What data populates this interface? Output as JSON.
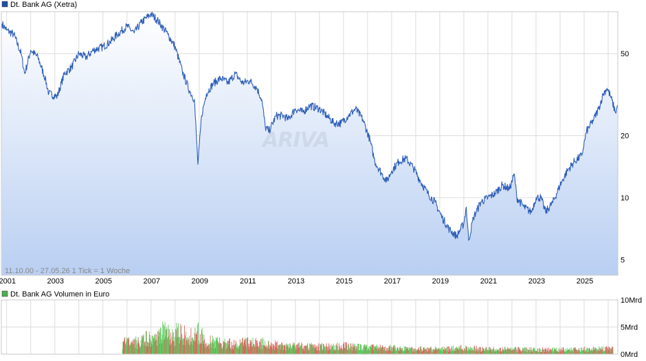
{
  "price_chart": {
    "legend_label": "Dt. Bank AG (Xetra)",
    "legend_color": "#1f4fa8",
    "line_color": "#2c5db8",
    "fill_top": "#ffffff",
    "fill_bottom": "#b9cff2",
    "info_text": "11.10.00 - 27.05.26   1 Tick = 1 Woche",
    "watermark": "ARIVA",
    "y_ticks": [
      {
        "label": "50",
        "value": 50
      },
      {
        "label": "20",
        "value": 20
      },
      {
        "label": "10",
        "value": 10
      },
      {
        "label": "5",
        "value": 5
      }
    ],
    "x_ticks": [
      {
        "label": "2001",
        "value": 2001
      },
      {
        "label": "2003",
        "value": 2003
      },
      {
        "label": "2005",
        "value": 2005
      },
      {
        "label": "2007",
        "value": 2007
      },
      {
        "label": "2009",
        "value": 2009
      },
      {
        "label": "2011",
        "value": 2011
      },
      {
        "label": "2013",
        "value": 2013
      },
      {
        "label": "2015",
        "value": 2015
      },
      {
        "label": "2017",
        "value": 2017
      },
      {
        "label": "2019",
        "value": 2019
      },
      {
        "label": "2021",
        "value": 2021
      },
      {
        "label": "2023",
        "value": 2023
      },
      {
        "label": "2025",
        "value": 2025
      }
    ]
  },
  "volume_chart": {
    "legend_label": "Dt. Bank AG Volumen in Euro",
    "legend_color": "#4caf50",
    "up_color": "#5cc85c",
    "down_color": "#e06060",
    "y_ticks": [
      {
        "label": "10Mrd",
        "value": 10
      },
      {
        "label": "5Mrd",
        "value": 5
      },
      {
        "label": "0Mrd",
        "value": 0
      }
    ]
  },
  "chart_data": [
    {
      "type": "line",
      "title": "Dt. Bank AG (Xetra)",
      "xlabel": "",
      "ylabel": "",
      "y_scale": "log",
      "xlim": [
        2000.78,
        2026.4
      ],
      "ylim": [
        4.2,
        80
      ],
      "grid": true,
      "series": [
        {
          "name": "Dt. Bank AG (Xetra)",
          "x": [
            2000.8,
            2001.0,
            2001.3,
            2001.6,
            2001.75,
            2002.0,
            2002.3,
            2002.6,
            2002.75,
            2003.1,
            2003.4,
            2003.7,
            2004.0,
            2004.3,
            2004.6,
            2005.0,
            2005.3,
            2005.6,
            2006.0,
            2006.3,
            2006.6,
            2007.0,
            2007.3,
            2007.45,
            2007.7,
            2008.0,
            2008.3,
            2008.6,
            2008.8,
            2008.95,
            2009.1,
            2009.3,
            2009.6,
            2009.9,
            2010.2,
            2010.5,
            2010.8,
            2011.1,
            2011.4,
            2011.6,
            2011.75,
            2011.9,
            2012.2,
            2012.5,
            2012.7,
            2013.0,
            2013.3,
            2013.6,
            2014.0,
            2014.3,
            2014.6,
            2014.9,
            2015.2,
            2015.5,
            2015.8,
            2016.1,
            2016.3,
            2016.6,
            2016.8,
            2017.0,
            2017.3,
            2017.6,
            2017.9,
            2018.2,
            2018.5,
            2018.8,
            2019.1,
            2019.4,
            2019.7,
            2020.0,
            2020.1,
            2020.2,
            2020.4,
            2020.7,
            2021.0,
            2021.3,
            2021.6,
            2021.9,
            2022.1,
            2022.2,
            2022.5,
            2022.8,
            2023.0,
            2023.2,
            2023.4,
            2023.7,
            2024.0,
            2024.3,
            2024.6,
            2024.9,
            2025.1,
            2025.4,
            2025.6,
            2025.8,
            2025.95,
            2026.1,
            2026.3,
            2026.4
          ],
          "y": [
            70,
            65,
            62,
            50,
            40,
            52,
            48,
            38,
            32,
            31,
            40,
            43,
            50,
            48,
            52,
            54,
            57,
            62,
            68,
            63,
            71,
            78,
            72,
            68,
            62,
            54,
            41,
            33,
            30,
            14.5,
            25,
            32,
            36,
            38,
            36,
            40,
            36,
            37,
            34,
            30,
            22,
            21,
            25,
            25,
            24,
            27,
            26,
            28,
            27,
            25,
            23,
            23,
            25,
            27,
            24,
            19,
            15,
            13,
            12,
            13.5,
            15,
            15.5,
            14,
            12,
            10.5,
            9.5,
            8,
            7,
            6.5,
            7.5,
            9,
            6.2,
            8,
            9.5,
            10,
            10.5,
            11.5,
            11,
            13,
            10,
            9,
            8.5,
            10,
            10,
            8.5,
            9.5,
            11.5,
            13.5,
            15,
            16,
            21,
            24,
            27,
            32,
            34,
            31,
            26,
            28
          ]
        }
      ]
    },
    {
      "type": "bar",
      "title": "Dt. Bank AG Volumen in Euro",
      "xlabel": "",
      "ylabel": "",
      "ylim": [
        0,
        10
      ],
      "y_unit": "Mrd",
      "series": [
        {
          "name": "Dt. Bank AG Volumen in Euro",
          "x": [
            2005.8,
            2006.3,
            2006.8,
            2007.2,
            2007.5,
            2007.9,
            2008.2,
            2008.5,
            2008.9,
            2009.3,
            2009.8,
            2010.4,
            2011.0,
            2011.6,
            2012.2,
            2013.0,
            2014.0,
            2015.0,
            2016.0,
            2017.0,
            2018.0,
            2019.0,
            2020.0,
            2021.0,
            2022.0,
            2023.0,
            2024.0,
            2025.0,
            2026.2
          ],
          "y": [
            2.5,
            2.5,
            3.5,
            4.0,
            5.0,
            3.8,
            5.5,
            3.5,
            5.0,
            3.0,
            2.5,
            2.3,
            2.5,
            2.5,
            2.0,
            1.8,
            1.7,
            1.8,
            1.6,
            1.4,
            1.2,
            1.1,
            1.4,
            1.1,
            1.1,
            1.0,
            1.0,
            1.1,
            1.2
          ]
        }
      ]
    }
  ]
}
